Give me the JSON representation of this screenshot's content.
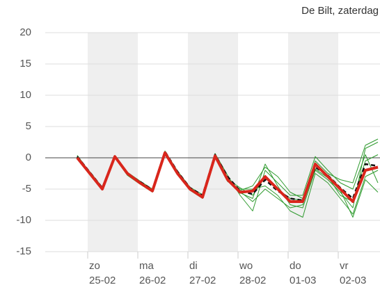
{
  "chart_data": {
    "type": "line",
    "title": "De Bilt, zaterdag",
    "xlim": [
      4,
      164
    ],
    "ylim": [
      -15,
      20
    ],
    "yticks": [
      20,
      15,
      10,
      5,
      0,
      -5,
      -10,
      -15
    ],
    "grid": true,
    "xticks": [
      {
        "value": 24,
        "label": "zo"
      },
      {
        "value": 48,
        "label": "ma"
      },
      {
        "value": 72,
        "label": "di"
      },
      {
        "value": 96,
        "label": "wo"
      },
      {
        "value": 120,
        "label": "do"
      },
      {
        "value": 144,
        "label": "vr"
      }
    ],
    "xtick_dates": [
      "25-02",
      "26-02",
      "27-02",
      "28-02",
      "01-03",
      "02-03"
    ],
    "x": [
      19,
      25,
      31,
      37,
      43,
      49,
      55,
      61,
      67,
      73,
      79,
      85,
      91,
      97,
      103,
      109,
      115,
      121,
      127,
      133,
      139,
      145,
      151,
      157,
      163
    ],
    "series": [
      {
        "color": "#2e9a2e",
        "width": 1,
        "values": [
          0.3,
          -2.4,
          -4.9,
          0.1,
          -2.7,
          -3.9,
          -5.2,
          0.9,
          -2.3,
          -5.1,
          -6.1,
          0.6,
          -3.2,
          -5.6,
          -6.5,
          -1,
          -4.5,
          -7.5,
          -8,
          -2,
          -3.5,
          -5.5,
          -8,
          1.5,
          2.5
        ]
      },
      {
        "color": "#2e9a2e",
        "width": 1,
        "values": [
          0.1,
          -2.6,
          -5,
          0.3,
          -2.5,
          -4.1,
          -5.4,
          0.7,
          -2.6,
          -4.9,
          -6.4,
          0.2,
          -3.8,
          -5,
          -5,
          -4.5,
          -6,
          -8.5,
          -9.5,
          -2.5,
          -4,
          -6.5,
          -9,
          -3,
          -2
        ]
      },
      {
        "color": "#2e9a2e",
        "width": 1,
        "values": [
          0.2,
          -2.2,
          -4.7,
          0.4,
          -2.3,
          -3.7,
          -5,
          1.1,
          -2.1,
          -4.7,
          -5.9,
          0.7,
          -2.8,
          -6,
          -8.5,
          -2,
          -4,
          -6,
          -6,
          0.2,
          -2,
          -4,
          -5,
          0.5,
          -4
        ]
      },
      {
        "color": "#2e9a2e",
        "width": 1,
        "values": [
          0,
          -2.7,
          -5.1,
          0,
          -2.8,
          -4.2,
          -5.5,
          0.6,
          -2.7,
          -5.2,
          -6.5,
          0.1,
          -3.6,
          -5.2,
          -4.5,
          -1.5,
          -3,
          -5.5,
          -6.5,
          -0.5,
          -2.5,
          -3.5,
          -4,
          2,
          3
        ]
      },
      {
        "color": "#2e9a2e",
        "width": 1,
        "values": [
          0.4,
          -2.3,
          -4.8,
          0.2,
          -2.4,
          -3.8,
          -5.1,
          1,
          -2.4,
          -4.8,
          -6.2,
          0.4,
          -3.3,
          -5.4,
          -7,
          -5,
          -6.5,
          -8,
          -7.5,
          -1.8,
          -3.2,
          -5.2,
          -9.5,
          -3.5,
          -5.5
        ]
      },
      {
        "color": "#2e9a2e",
        "width": 1,
        "values": [
          0.2,
          -2.5,
          -4.9,
          0.3,
          -2.6,
          -4,
          -5.3,
          0.9,
          -2.4,
          -5,
          -6.2,
          0.5,
          -3.4,
          -4.8,
          -6,
          -3,
          -5,
          -6.5,
          -6.8,
          -1.2,
          -3,
          -6,
          -7,
          -0.5,
          0.5
        ]
      },
      {
        "color": "#111111",
        "width": 2.5,
        "dashed": true,
        "values": [
          0.2,
          -2.3,
          -4.8,
          0.3,
          -2.6,
          -3.8,
          -5.1,
          1,
          -2.2,
          -4.8,
          -6,
          0.5,
          -3,
          -5.3,
          -5.8,
          -3.5,
          -5.3,
          -6.5,
          -6.8,
          -1.5,
          -2.8,
          -4.8,
          -6.5,
          -1,
          -1.3
        ]
      },
      {
        "color": "#d9261c",
        "width": 4,
        "values": [
          0,
          -2.5,
          -5,
          0.2,
          -2.5,
          -4,
          -5.3,
          0.8,
          -2.5,
          -5,
          -6.3,
          0.3,
          -3.5,
          -5.5,
          -5.3,
          -3,
          -5,
          -7,
          -7,
          -1,
          -3,
          -5,
          -7,
          -2,
          -1.5
        ]
      }
    ]
  }
}
